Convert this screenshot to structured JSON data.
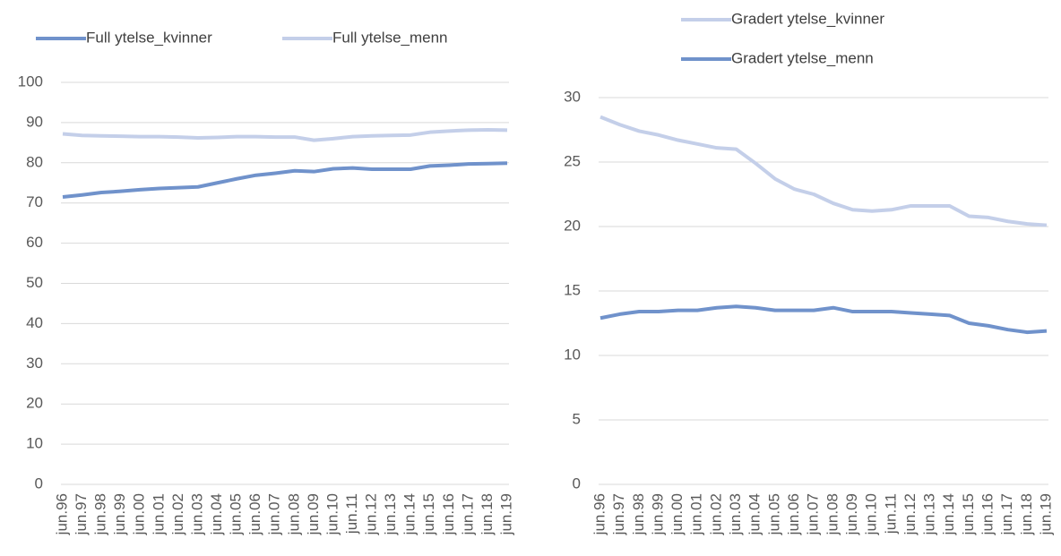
{
  "chart_data": [
    {
      "type": "line",
      "categories": [
        "jun.96",
        "jun.97",
        "jun.98",
        "jun.99",
        "jun.00",
        "jun.01",
        "jun.02",
        "jun.03",
        "jun.04",
        "jun.05",
        "jun.06",
        "jun.07",
        "jun.08",
        "jun.09",
        "jun.10",
        "jun.11",
        "jun.12",
        "jun.13",
        "jun.14",
        "jun.15",
        "jun.16",
        "jun.17",
        "jun.18",
        "jun.19"
      ],
      "series": [
        {
          "name": "Full ytelse_kvinner",
          "color": "#7092cb",
          "values": [
            71.5,
            72,
            72.6,
            72.9,
            73.3,
            73.6,
            73.8,
            74.0,
            75.0,
            76.0,
            76.9,
            77.4,
            78.0,
            77.8,
            78.5,
            78.7,
            78.4,
            78.4,
            78.4,
            79.2,
            79.4,
            79.7,
            79.8,
            79.9
          ]
        },
        {
          "name": "Full ytelse_menn",
          "color": "#c4cfe9",
          "values": [
            87.2,
            86.8,
            86.7,
            86.6,
            86.5,
            86.5,
            86.4,
            86.2,
            86.3,
            86.5,
            86.5,
            86.4,
            86.4,
            85.6,
            86.0,
            86.5,
            86.7,
            86.8,
            86.9,
            87.6,
            87.9,
            88.1,
            88.2,
            88.1
          ]
        }
      ],
      "ylim": [
        0,
        100
      ],
      "yticks": [
        0,
        10,
        20,
        30,
        40,
        50,
        60,
        70,
        80,
        90,
        100
      ],
      "grid": true,
      "legend": "top"
    },
    {
      "type": "line",
      "categories": [
        "jun.96",
        "jun.97",
        "jun.98",
        "jun.99",
        "jun.00",
        "jun.01",
        "jun.02",
        "jun.03",
        "jun.04",
        "jun.05",
        "jun.06",
        "jun.07",
        "jun.08",
        "jun.09",
        "jun.10",
        "jun.11",
        "jun.12",
        "jun.13",
        "jun.14",
        "jun.15",
        "jun.16",
        "jun.17",
        "jun.18",
        "jun.19"
      ],
      "series": [
        {
          "name": "Gradert ytelse_kvinner",
          "color": "#c4cfe9",
          "values": [
            28.5,
            27.9,
            27.4,
            27.1,
            26.7,
            26.4,
            26.1,
            26.0,
            24.9,
            23.7,
            22.9,
            22.5,
            21.8,
            21.3,
            21.2,
            21.3,
            21.6,
            21.6,
            21.6,
            20.8,
            20.7,
            20.4,
            20.2,
            20.1
          ]
        },
        {
          "name": "Gradert ytelse_menn",
          "color": "#7092cb",
          "values": [
            12.9,
            13.2,
            13.4,
            13.4,
            13.5,
            13.5,
            13.7,
            13.8,
            13.7,
            13.5,
            13.5,
            13.5,
            13.7,
            13.4,
            13.4,
            13.4,
            13.3,
            13.2,
            13.1,
            12.5,
            12.3,
            12.0,
            11.8,
            11.9
          ]
        }
      ],
      "ylim": [
        0,
        30
      ],
      "yticks": [
        0,
        5,
        10,
        15,
        20,
        25,
        30
      ],
      "grid": true,
      "legend": "top-stacked"
    }
  ]
}
